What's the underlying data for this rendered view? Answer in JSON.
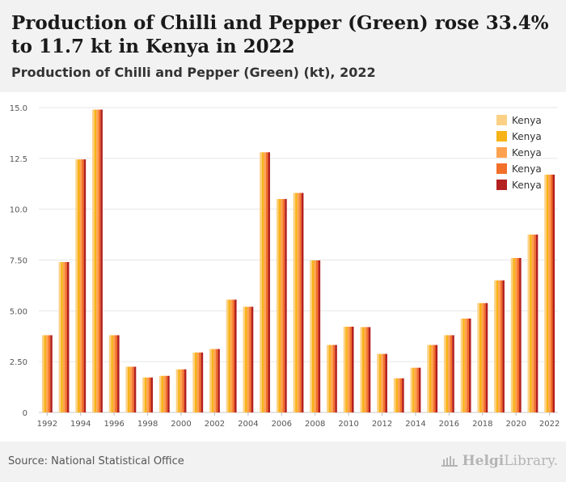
{
  "header": {
    "title": "Production of Chilli and Pepper (Green) rose 33.4% to 11.7 kt in Kenya in 2022",
    "subtitle": "Production of Chilli and Pepper (Green) (kt), 2022"
  },
  "footer": {
    "source": "Source: National Statistical Office",
    "brand_bold": "Helgi",
    "brand_rest": "Library."
  },
  "colors": [
    "#fdd185",
    "#f7b317",
    "#fea24f",
    "#f26f2a",
    "#b3201f"
  ],
  "chart_data": {
    "type": "bar",
    "title": "Production of Chilli and Pepper (Green) rose 33.4% to 11.7 kt in Kenya in 2022",
    "subtitle": "Production of Chilli and Pepper (Green) (kt), 2022",
    "xlabel": "",
    "ylabel": "",
    "ylim": [
      0,
      15
    ],
    "yticks": [
      "0",
      "2.50",
      "5.00",
      "7.50",
      "10.0",
      "12.5",
      "15.0"
    ],
    "ytick_values": [
      0,
      2.5,
      5,
      7.5,
      10,
      12.5,
      15
    ],
    "grid": true,
    "legend_position": "top-right",
    "categories": [
      "1992",
      "1993",
      "1994",
      "1995",
      "1996",
      "1997",
      "1998",
      "1999",
      "2000",
      "2001",
      "2002",
      "2003",
      "2004",
      "2005",
      "2006",
      "2007",
      "2008",
      "2009",
      "2010",
      "2011",
      "2012",
      "2013",
      "2014",
      "2015",
      "2016",
      "2017",
      "2018",
      "2019",
      "2020",
      "2021",
      "2022"
    ],
    "xtick_labels": [
      "1992",
      "1994",
      "1996",
      "1998",
      "2000",
      "2002",
      "2004",
      "2006",
      "2008",
      "2010",
      "2012",
      "2014",
      "2016",
      "2018",
      "2020",
      "2022"
    ],
    "series": [
      {
        "name": "Kenya",
        "values": [
          3.8,
          7.4,
          12.45,
          14.9,
          3.8,
          2.25,
          1.72,
          1.8,
          2.12,
          2.95,
          3.12,
          5.55,
          5.2,
          12.8,
          10.5,
          10.8,
          7.48,
          3.32,
          4.22,
          4.2,
          2.88,
          1.68,
          2.2,
          3.32,
          3.8,
          4.62,
          5.38,
          6.5,
          7.6,
          8.75,
          11.7
        ]
      },
      {
        "name": "Kenya",
        "values": [
          3.8,
          7.4,
          12.45,
          14.9,
          3.8,
          2.25,
          1.72,
          1.8,
          2.12,
          2.95,
          3.12,
          5.55,
          5.2,
          12.8,
          10.5,
          10.8,
          7.48,
          3.32,
          4.22,
          4.2,
          2.88,
          1.68,
          2.2,
          3.32,
          3.8,
          4.62,
          5.38,
          6.5,
          7.6,
          8.75,
          11.7
        ]
      },
      {
        "name": "Kenya",
        "values": [
          3.8,
          7.4,
          12.45,
          14.9,
          3.8,
          2.25,
          1.72,
          1.8,
          2.12,
          2.95,
          3.12,
          5.55,
          5.2,
          12.8,
          10.5,
          10.8,
          7.48,
          3.32,
          4.22,
          4.2,
          2.88,
          1.68,
          2.2,
          3.32,
          3.8,
          4.62,
          5.38,
          6.5,
          7.6,
          8.75,
          11.7
        ]
      },
      {
        "name": "Kenya",
        "values": [
          3.8,
          7.4,
          12.45,
          14.9,
          3.8,
          2.25,
          1.72,
          1.8,
          2.12,
          2.95,
          3.12,
          5.55,
          5.2,
          12.8,
          10.5,
          10.8,
          7.48,
          3.32,
          4.22,
          4.2,
          2.88,
          1.68,
          2.2,
          3.32,
          3.8,
          4.62,
          5.38,
          6.5,
          7.6,
          8.75,
          11.7
        ]
      },
      {
        "name": "Kenya",
        "values": [
          3.8,
          7.4,
          12.45,
          14.9,
          3.8,
          2.25,
          1.72,
          1.8,
          2.12,
          2.95,
          3.12,
          5.55,
          5.2,
          12.8,
          10.5,
          10.8,
          7.48,
          3.32,
          4.22,
          4.2,
          2.88,
          1.68,
          2.2,
          3.32,
          3.8,
          4.62,
          5.38,
          6.5,
          7.6,
          8.75,
          11.7
        ]
      }
    ]
  }
}
